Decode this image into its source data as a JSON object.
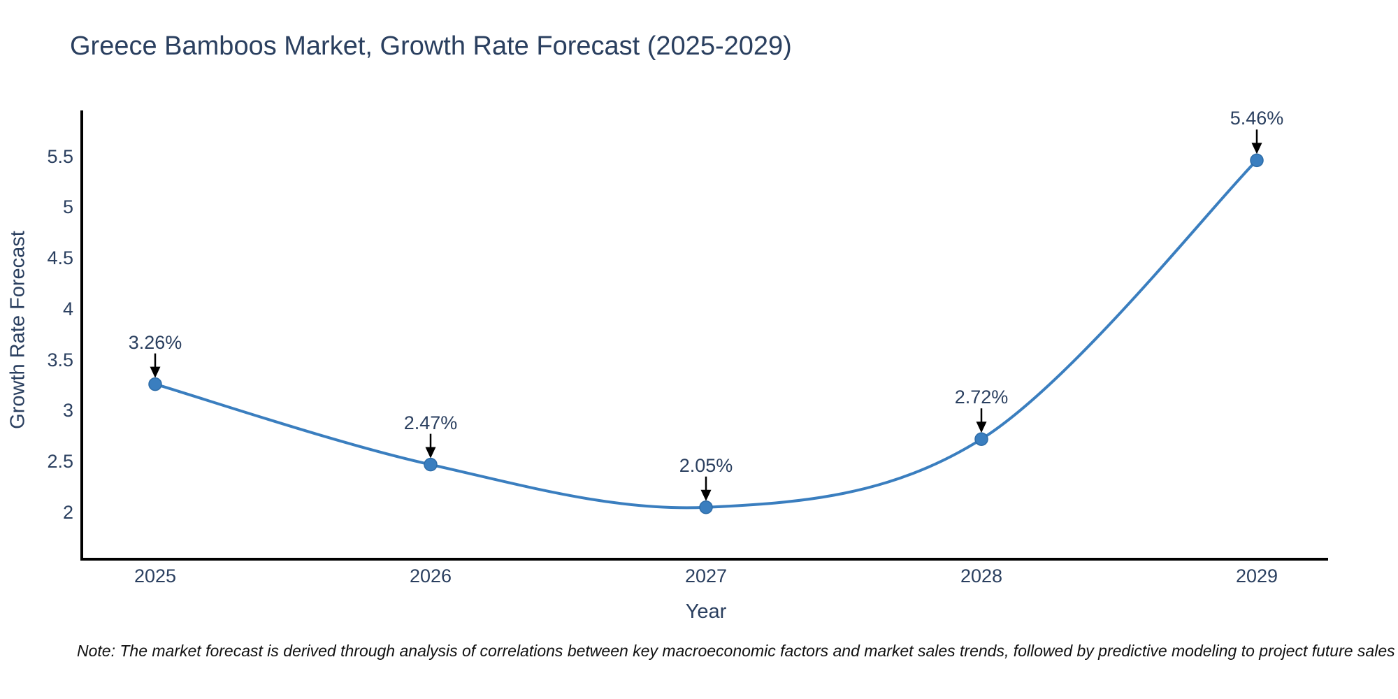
{
  "header": {
    "title": "Greece Bamboos Market, Growth Rate Forecast (2025-2029)"
  },
  "footer": {
    "note": "Note: The market forecast is derived through analysis of correlations between key macroeconomic factors and market sales trends, followed by predictive modeling to project future sales"
  },
  "chart_data": {
    "type": "line",
    "title": "Greece Bamboos Market, Growth Rate Forecast (2025-2029)",
    "xlabel": "Year",
    "ylabel": "Growth Rate Forecast",
    "categories": [
      "2025",
      "2026",
      "2027",
      "2028",
      "2029"
    ],
    "series": [
      {
        "name": "Growth Rate Forecast",
        "values": [
          3.26,
          2.47,
          2.05,
          2.72,
          5.46
        ],
        "point_labels": [
          "3.26%",
          "2.47%",
          "2.05%",
          "2.72%",
          "5.46%"
        ]
      }
    ],
    "yticks": [
      2,
      2.5,
      3,
      3.5,
      4,
      4.5,
      5,
      5.5
    ],
    "ytick_labels": [
      "2",
      "2.5",
      "3",
      "3.5",
      "4",
      "4.5",
      "5",
      "5.5"
    ],
    "ylim": [
      1.54,
      5.95
    ],
    "line_shape": "spline",
    "grid": false,
    "legend_position": "none",
    "annotations_have_arrows": true,
    "colors": {
      "line": "#3a7ebf",
      "marker_fill": "#3a7ebf",
      "marker_edge": "#2d6ca8",
      "axis_line": "#000000",
      "chart_text": "#2a3f5f",
      "arrow": "#000000",
      "note_text": "#111111",
      "background": "#ffffff"
    }
  }
}
